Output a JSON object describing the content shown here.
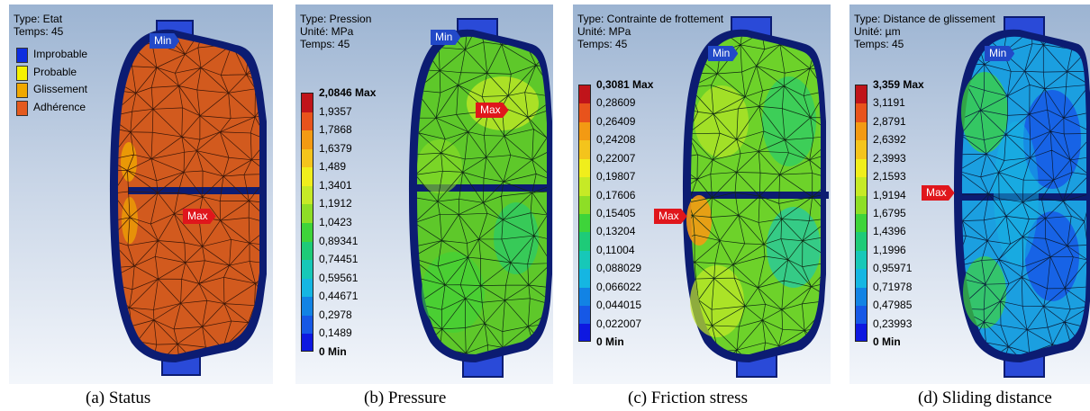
{
  "panels": [
    {
      "header": [
        "Type: Etat",
        "Temps: 45"
      ],
      "legend": [
        {
          "label": "Improbable",
          "color": "#0e2ee0"
        },
        {
          "label": "Probable",
          "color": "#f6f200"
        },
        {
          "label": "Glissement",
          "color": "#f0a800"
        },
        {
          "label": "Adhérence",
          "color": "#e45a1e"
        }
      ],
      "min_tag": "Min",
      "max_tag": "Max",
      "caption": "(a)  Status"
    },
    {
      "header": [
        "Type: Pression",
        "Unité: MPa",
        "Temps: 45"
      ],
      "scale": [
        "2,0846 Max",
        "1,9357",
        "1,7868",
        "1,6379",
        "1,489",
        "1,3401",
        "1,1912",
        "1,0423",
        "0,89341",
        "0,74451",
        "0,59561",
        "0,44671",
        "0,2978",
        "0,1489",
        "0 Min"
      ],
      "min_tag": "Min",
      "max_tag": "Max",
      "caption": "(b)  Pressure"
    },
    {
      "header": [
        "Type: Contrainte de frottement",
        "Unité: MPa",
        "Temps: 45"
      ],
      "scale": [
        "0,3081 Max",
        "0,28609",
        "0,26409",
        "0,24208",
        "0,22007",
        "0,19807",
        "0,17606",
        "0,15405",
        "0,13204",
        "0,11004",
        "0,088029",
        "0,066022",
        "0,044015",
        "0,022007",
        "0 Min"
      ],
      "min_tag": "Min",
      "max_tag": "Max",
      "caption": "(c)  Friction stress"
    },
    {
      "header": [
        "Type: Distance de glissement",
        "Unité: µm",
        "Temps: 45"
      ],
      "scale": [
        "3,359 Max",
        "3,1191",
        "2,8791",
        "2,6392",
        "2,3993",
        "2,1593",
        "1,9194",
        "1,6795",
        "1,4396",
        "1,1996",
        "0,95971",
        "0,71978",
        "0,47985",
        "0,23993",
        "0 Min"
      ],
      "min_tag": "Min",
      "max_tag": "Max",
      "caption": "(d) Sliding distance"
    }
  ],
  "colors": {
    "scale": [
      "#c0141a",
      "#e8531c",
      "#f39a13",
      "#f4c41c",
      "#f0ee1c",
      "#c6ea26",
      "#8ede26",
      "#3ed43a",
      "#1ecb78",
      "#17c8b8",
      "#15b6e2",
      "#1283e4",
      "#1658e6",
      "#0e18e0"
    ],
    "pad_outline": "#0c1c72",
    "lug": "#2a4ad8"
  }
}
